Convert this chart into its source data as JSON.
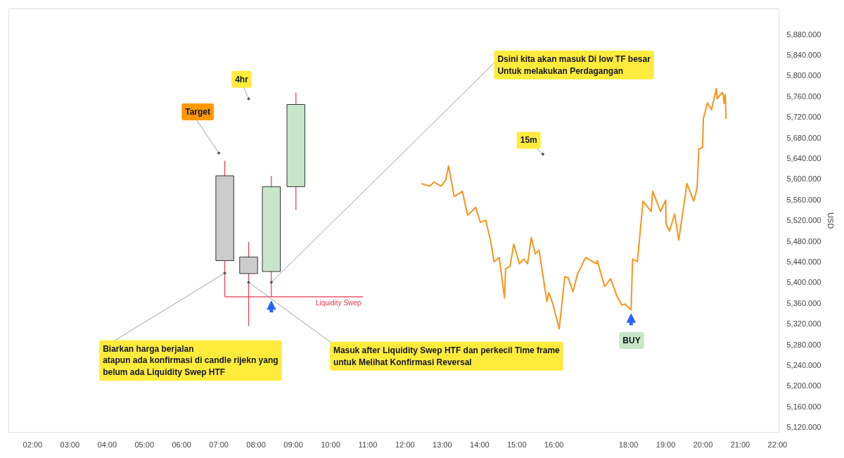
{
  "chart_data": {
    "type": "candlestick",
    "x": [
      7.16,
      7.8,
      8.41,
      9.07
    ],
    "ohlc": [
      [
        5606,
        5635,
        5372,
        5442
      ],
      [
        5449,
        5478,
        5316,
        5417
      ],
      [
        5421,
        5606,
        5372,
        5585
      ],
      [
        5585,
        5767,
        5540,
        5744
      ]
    ],
    "colors": [
      "#cccccc",
      "#cccccc",
      "#c8e6c9",
      "#c8e6c9"
    ],
    "series": [
      {
        "type": "line",
        "color": "#f7941d",
        "x": [
          12.44,
          12.66,
          12.78,
          12.97,
          13.09,
          13.17,
          13.32,
          13.54,
          13.68,
          13.9,
          14.02,
          14.17,
          14.3,
          14.39,
          14.53,
          14.67,
          14.7,
          14.82,
          14.92,
          15.07,
          15.19,
          15.29,
          15.39,
          15.5,
          15.6,
          15.81,
          15.86,
          15.97,
          16.14,
          16.29,
          16.38,
          16.51,
          16.63,
          16.85,
          17.14,
          17.16,
          17.36,
          17.52,
          17.68,
          17.82,
          17.9,
          18.07,
          18.11,
          18.24,
          18.39,
          18.61,
          18.65,
          18.86,
          19.0,
          19.01,
          19.1,
          19.24,
          19.35,
          19.57,
          19.75,
          19.84,
          19.89,
          19.99,
          20.01,
          20.12,
          20.23,
          20.36,
          20.38,
          20.51,
          20.54,
          20.57,
          20.6,
          20.62
        ],
        "values": [
          5591,
          5586,
          5594,
          5586,
          5598,
          5625,
          5566,
          5576,
          5530,
          5545,
          5516,
          5520,
          5479,
          5440,
          5448,
          5370,
          5426,
          5431,
          5474,
          5436,
          5445,
          5436,
          5487,
          5455,
          5462,
          5363,
          5380,
          5358,
          5310,
          5411,
          5409,
          5382,
          5416,
          5448,
          5436,
          5442,
          5392,
          5407,
          5375,
          5356,
          5358,
          5347,
          5445,
          5440,
          5557,
          5537,
          5576,
          5537,
          5559,
          5513,
          5499,
          5532,
          5482,
          5591,
          5557,
          5581,
          5658,
          5661,
          5716,
          5747,
          5734,
          5775,
          5755,
          5767,
          5765,
          5746,
          5763,
          5716
        ]
      }
    ],
    "ylabel": "USD",
    "annotations": [
      {
        "text": "Target",
        "x": 7.0,
        "y": 5650
      },
      {
        "text": "4hr",
        "x": 7.8,
        "y": 5755
      },
      {
        "text": "Dsini kita akan masuk Di low TF besar\nUntuk melakukan Perdagangan",
        "x": 8.41,
        "y": 5400
      },
      {
        "text": "15m",
        "x": 15.7,
        "y": 5648
      },
      {
        "text": "Biarkan harga berjalan\natapun ada konfirmasi di candle rijekn yang\nbelum ada Liquidity Swep HTF",
        "x": 7.16,
        "y": 5418
      },
      {
        "text": "Masuk after Liquidity Swep HTF dan perkecil Time frame\nuntuk Melihat Konfirmasi Reversal",
        "x": 7.8,
        "y": 5400
      },
      "BUY"
    ],
    "ref_lines": [
      {
        "axis": "y",
        "value": 5372,
        "label": "Liquidity Swep",
        "color": "#e53950"
      }
    ],
    "xlim": [
      1.36,
      22.04
    ],
    "ylim": [
      5110,
      5929
    ],
    "xticks": [
      {
        "value": 2,
        "label": "02:00"
      },
      {
        "value": 3,
        "label": "03:00"
      },
      {
        "value": 4,
        "label": "04:00"
      },
      {
        "value": 5,
        "label": "05:00"
      },
      {
        "value": 6,
        "label": "06:00"
      },
      {
        "value": 7,
        "label": "07:00"
      },
      {
        "value": 8,
        "label": "08:00"
      },
      {
        "value": 9,
        "label": "09:00"
      },
      {
        "value": 10,
        "label": "10:00"
      },
      {
        "value": 11,
        "label": "11:00"
      },
      {
        "value": 12,
        "label": "12:00"
      },
      {
        "value": 13,
        "label": "13:00"
      },
      {
        "value": 14,
        "label": "14:00"
      },
      {
        "value": 15,
        "label": "15:00"
      },
      {
        "value": 16,
        "label": "16:00"
      },
      {
        "value": 18,
        "label": "18:00"
      },
      {
        "value": 19,
        "label": "19:00"
      },
      {
        "value": 20,
        "label": "20:00"
      },
      {
        "value": 21,
        "label": "21:00"
      },
      {
        "value": 22,
        "label": "22:00"
      }
    ],
    "yticks": [
      {
        "value": 5120,
        "label": "5,120.000"
      },
      {
        "value": 5160,
        "label": "5,160.000"
      },
      {
        "value": 5200,
        "label": "5,200.000"
      },
      {
        "value": 5240,
        "label": "5,240.000"
      },
      {
        "value": 5280,
        "label": "5,280.000"
      },
      {
        "value": 5320,
        "label": "5,320.000"
      },
      {
        "value": 5360,
        "label": "5,360.000"
      },
      {
        "value": 5400,
        "label": "5,400.000"
      },
      {
        "value": 5440,
        "label": "5,440.000"
      },
      {
        "value": 5480,
        "label": "5,480.000"
      },
      {
        "value": 5520,
        "label": "5,520.000"
      },
      {
        "value": 5560,
        "label": "5,560.000"
      },
      {
        "value": 5600,
        "label": "5,600.000"
      },
      {
        "value": 5640,
        "label": "5,640.000"
      },
      {
        "value": 5680,
        "label": "5,680.000"
      },
      {
        "value": 5720,
        "label": "5,720.000"
      },
      {
        "value": 5760,
        "label": "5,760.000"
      },
      {
        "value": 5800,
        "label": "5,800.000"
      },
      {
        "value": 5840,
        "label": "5,840.000"
      },
      {
        "value": 5880,
        "label": "5,880.000"
      }
    ],
    "grid": false
  }
}
